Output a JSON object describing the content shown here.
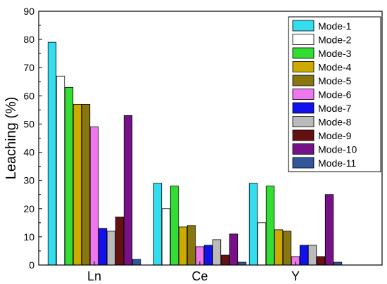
{
  "chart_data": {
    "type": "bar",
    "ylabel": "Leaching (%)",
    "xlabel": "",
    "ylim": [
      0,
      90
    ],
    "yticks": [
      0,
      10,
      20,
      30,
      40,
      50,
      60,
      70,
      80,
      90
    ],
    "categories": [
      "Ln",
      "Ce",
      "Y"
    ],
    "legend_position": "top-right",
    "grid": false,
    "series": [
      {
        "name": "Mode-1",
        "color": "#33ddee",
        "values": [
          79,
          29,
          29
        ]
      },
      {
        "name": "Mode-2",
        "color": "#ffffff",
        "values": [
          67,
          20,
          15
        ]
      },
      {
        "name": "Mode-3",
        "color": "#33dd33",
        "values": [
          63,
          28,
          28
        ]
      },
      {
        "name": "Mode-4",
        "color": "#ccaa00",
        "values": [
          57,
          13.5,
          12.5
        ]
      },
      {
        "name": "Mode-5",
        "color": "#887711",
        "values": [
          57,
          14,
          12
        ]
      },
      {
        "name": "Mode-6",
        "color": "#ee77ee",
        "values": [
          49,
          6.5,
          3
        ]
      },
      {
        "name": "Mode-7",
        "color": "#1111ee",
        "values": [
          13,
          7,
          7
        ]
      },
      {
        "name": "Mode-8",
        "color": "#bbbbbb",
        "values": [
          12,
          9,
          7
        ]
      },
      {
        "name": "Mode-9",
        "color": "#661111",
        "values": [
          17,
          3.5,
          3
        ]
      },
      {
        "name": "Mode-10",
        "color": "#771188",
        "values": [
          53,
          11,
          25
        ]
      },
      {
        "name": "Mode-11",
        "color": "#335599",
        "values": [
          2,
          1,
          1
        ]
      }
    ]
  }
}
